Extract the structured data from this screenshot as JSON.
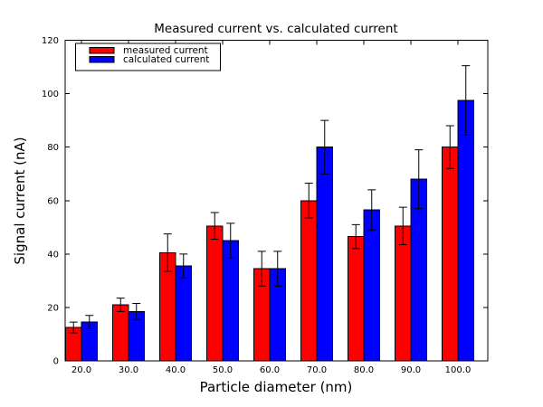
{
  "chart_data": {
    "type": "bar",
    "title": "Measured current vs. calculated current",
    "xlabel": "Particle diameter (nm)",
    "ylabel": "Signal current (nA)",
    "categories": [
      "20.0",
      "30.0",
      "40.0",
      "50.0",
      "60.0",
      "70.0",
      "80.0",
      "90.0",
      "100.0"
    ],
    "series": [
      {
        "name": "measured current",
        "color": "#ff0000",
        "values": [
          12.5,
          21.0,
          40.5,
          50.5,
          34.5,
          60.0,
          46.5,
          50.5,
          80.0
        ],
        "errors": [
          2.0,
          2.5,
          7.0,
          5.0,
          6.5,
          6.5,
          4.5,
          7.0,
          8.0
        ]
      },
      {
        "name": "calculated current",
        "color": "#0000ff",
        "values": [
          14.5,
          18.5,
          35.5,
          45.0,
          34.5,
          80.0,
          56.5,
          68.0,
          97.5
        ],
        "errors": [
          2.5,
          3.0,
          4.5,
          6.5,
          6.5,
          10.0,
          7.5,
          11.0,
          13.0
        ]
      }
    ],
    "ylim": [
      0,
      120
    ],
    "yticks": [
      "0",
      "20",
      "40",
      "60",
      "80",
      "100",
      "120"
    ],
    "error_bars": true,
    "grid": false,
    "legend_position": "upper left",
    "background_color": "#ffffff",
    "bar_edge_color": "#000000",
    "axis_color": "#000000"
  }
}
